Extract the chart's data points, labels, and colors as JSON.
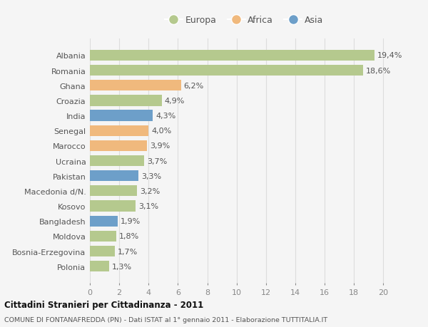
{
  "categories": [
    "Albania",
    "Romania",
    "Ghana",
    "Croazia",
    "India",
    "Senegal",
    "Marocco",
    "Ucraina",
    "Pakistan",
    "Macedonia d/N.",
    "Kosovo",
    "Bangladesh",
    "Moldova",
    "Bosnia-Erzegovina",
    "Polonia"
  ],
  "values": [
    19.4,
    18.6,
    6.2,
    4.9,
    4.3,
    4.0,
    3.9,
    3.7,
    3.3,
    3.2,
    3.1,
    1.9,
    1.8,
    1.7,
    1.3
  ],
  "labels": [
    "19,4%",
    "18,6%",
    "6,2%",
    "4,9%",
    "4,3%",
    "4,0%",
    "3,9%",
    "3,7%",
    "3,3%",
    "3,2%",
    "3,1%",
    "1,9%",
    "1,8%",
    "1,7%",
    "1,3%"
  ],
  "continents": [
    "Europa",
    "Europa",
    "Africa",
    "Europa",
    "Asia",
    "Africa",
    "Africa",
    "Europa",
    "Asia",
    "Europa",
    "Europa",
    "Asia",
    "Europa",
    "Europa",
    "Europa"
  ],
  "colors": {
    "Europa": "#b5c98e",
    "Africa": "#f0b97d",
    "Asia": "#6d9fc9"
  },
  "xlim": [
    0,
    21
  ],
  "xticks": [
    0,
    2,
    4,
    6,
    8,
    10,
    12,
    14,
    16,
    18,
    20
  ],
  "title": "Cittadini Stranieri per Cittadinanza - 2011",
  "subtitle": "COMUNE DI FONTANAFREDDA (PN) - Dati ISTAT al 1° gennaio 2011 - Elaborazione TUTTITALIA.IT",
  "background_color": "#f5f5f5",
  "plot_bg_color": "#f5f5f5",
  "bar_height": 0.72,
  "grid_color": "#dddddd",
  "label_fontsize": 8,
  "tick_fontsize": 8,
  "ytick_fontsize": 8,
  "label_color": "#555555",
  "tick_color": "#888888"
}
